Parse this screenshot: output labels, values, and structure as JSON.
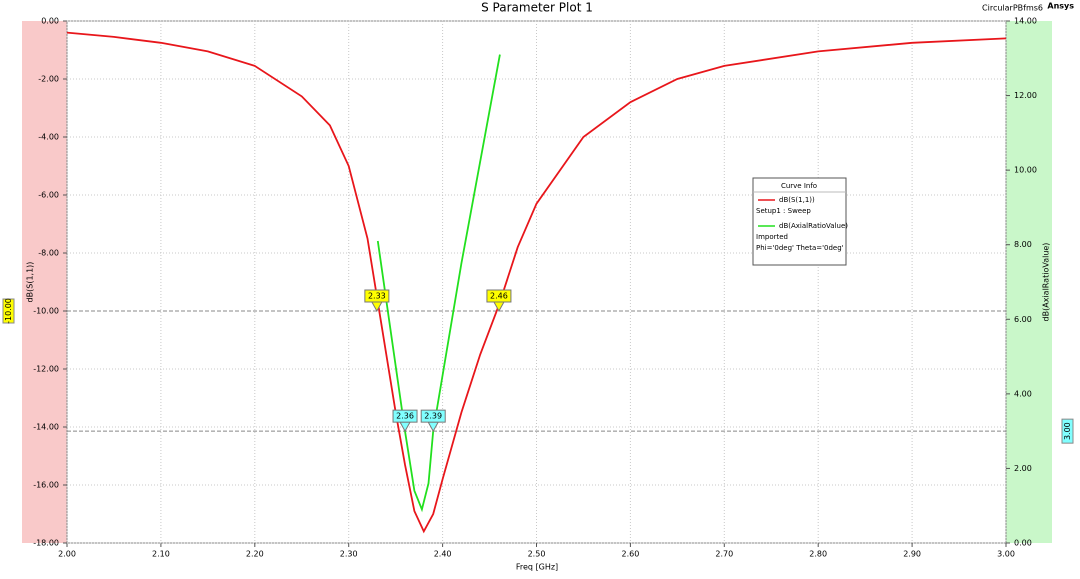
{
  "chart_data": {
    "type": "line",
    "title": "S Parameter Plot 1",
    "project": "CircularPBfms6",
    "brand": "Ansys",
    "xlabel": "Freq [GHz]",
    "ylabel": "dB(S(1,1))",
    "y2label": "dB(AxialRatioValue)",
    "legend_title": "Curve Info",
    "xlim": [
      2.0,
      3.0
    ],
    "ylim": [
      -18,
      0
    ],
    "y2lim": [
      0,
      14
    ],
    "xticks": [
      {
        "value": 2.0,
        "label": "2.00"
      },
      {
        "value": 2.1,
        "label": "2.10"
      },
      {
        "value": 2.2,
        "label": "2.20"
      },
      {
        "value": 2.3,
        "label": "2.30"
      },
      {
        "value": 2.4,
        "label": "2.40"
      },
      {
        "value": 2.5,
        "label": "2.50"
      },
      {
        "value": 2.6,
        "label": "2.60"
      },
      {
        "value": 2.7,
        "label": "2.70"
      },
      {
        "value": 2.8,
        "label": "2.80"
      },
      {
        "value": 2.9,
        "label": "2.90"
      },
      {
        "value": 3.0,
        "label": "3.00"
      }
    ],
    "yticks": [
      {
        "value": 0,
        "label": "0.00"
      },
      {
        "value": -2,
        "label": "-2.00"
      },
      {
        "value": -4,
        "label": "-4.00"
      },
      {
        "value": -6,
        "label": "-6.00"
      },
      {
        "value": -8,
        "label": "-8.00"
      },
      {
        "value": -10,
        "label": "-10.00"
      },
      {
        "value": -12,
        "label": "-12.00"
      },
      {
        "value": -14,
        "label": "-14.00"
      },
      {
        "value": -16,
        "label": "-16.00"
      },
      {
        "value": -18,
        "label": "-18.00"
      }
    ],
    "y2ticks": [
      {
        "value": 0,
        "label": "0.00"
      },
      {
        "value": 2,
        "label": "2.00"
      },
      {
        "value": 4,
        "label": "4.00"
      },
      {
        "value": 6,
        "label": "6.00"
      },
      {
        "value": 8,
        "label": "8.00"
      },
      {
        "value": 10,
        "label": "10.00"
      },
      {
        "value": 12,
        "label": "12.00"
      },
      {
        "value": 14,
        "label": "14.00"
      }
    ],
    "grid": true,
    "series": [
      {
        "name": "dB(S(1,1))",
        "color": "#e8161b",
        "axis": "y",
        "notes": [
          "Setup1 : Sweep"
        ],
        "x": [
          2.0,
          2.05,
          2.1,
          2.15,
          2.2,
          2.25,
          2.28,
          2.3,
          2.32,
          2.33,
          2.34,
          2.35,
          2.36,
          2.37,
          2.38,
          2.39,
          2.4,
          2.42,
          2.44,
          2.46,
          2.48,
          2.5,
          2.55,
          2.6,
          2.65,
          2.7,
          2.8,
          2.9,
          3.0
        ],
        "values": [
          -0.4,
          -0.55,
          -0.75,
          -1.05,
          -1.55,
          -2.6,
          -3.6,
          -5.0,
          -7.5,
          -9.5,
          -11.5,
          -13.5,
          -15.3,
          -16.9,
          -17.6,
          -17.0,
          -15.8,
          -13.5,
          -11.5,
          -9.8,
          -7.8,
          -6.3,
          -4.0,
          -2.8,
          -2.0,
          -1.55,
          -1.05,
          -0.75,
          -0.6
        ]
      },
      {
        "name": "dB(AxialRatioValue)",
        "color": "#22e01e",
        "axis": "y2",
        "notes": [
          "Imported",
          "Phi='0deg' Theta='0deg'"
        ],
        "x": [
          2.331,
          2.36,
          2.37,
          2.378,
          2.385,
          2.39,
          2.42,
          2.461
        ],
        "values": [
          8.1,
          3.0,
          1.4,
          0.9,
          1.6,
          3.0,
          7.5,
          13.1
        ]
      }
    ],
    "hlines": [
      {
        "value": -10,
        "label": "-10.00",
        "axis": "y",
        "color": "#ffff00"
      },
      {
        "value": 3,
        "label": "3.00",
        "axis": "y2",
        "color": "#80ffff"
      }
    ],
    "markers": [
      {
        "x": 2.33,
        "y": -10,
        "axis": "y",
        "color": "#ffff00"
      },
      {
        "x": 2.46,
        "y": -10,
        "axis": "y",
        "color": "#ffff00"
      },
      {
        "x": 2.36,
        "y": 3,
        "axis": "y2",
        "color": "#80ffff"
      },
      {
        "x": 2.39,
        "y": 3,
        "axis": "y2",
        "color": "#80ffff"
      }
    ]
  }
}
